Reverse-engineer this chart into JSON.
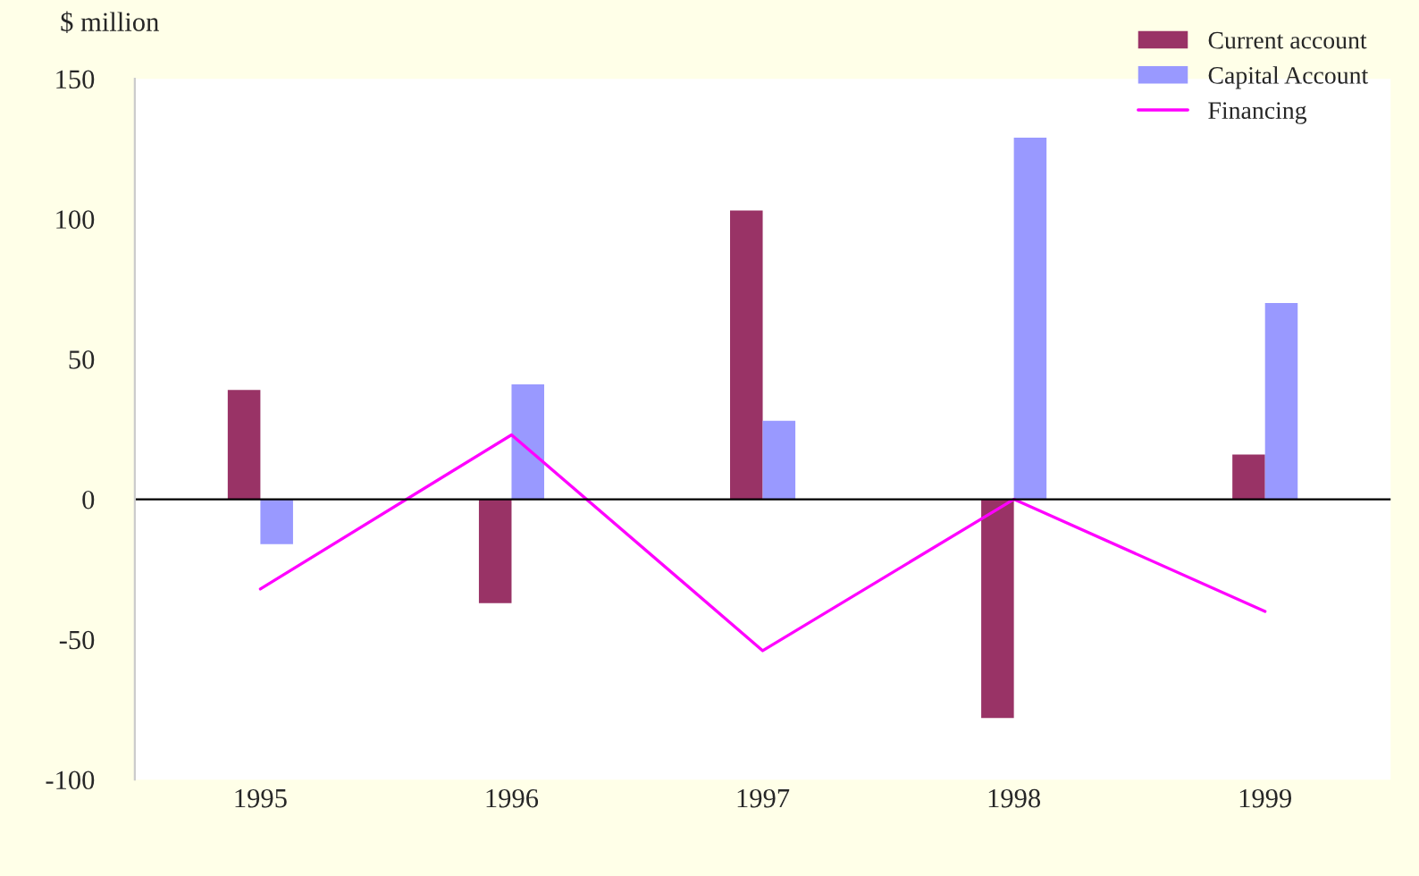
{
  "chart_data": {
    "type": "bar",
    "ylabel": "$ million",
    "categories": [
      "1995",
      "1996",
      "1997",
      "1998",
      "1999"
    ],
    "series": [
      {
        "name": "Current account",
        "color": "#993366",
        "values": [
          39,
          -37,
          103,
          -78,
          16
        ]
      },
      {
        "name": "Capital Account",
        "color": "#9999ff",
        "values": [
          -16,
          41,
          28,
          129,
          70
        ]
      },
      {
        "name": "Financing",
        "type": "line",
        "color": "#ff00ff",
        "values": [
          -32,
          23,
          -54,
          0,
          -40
        ]
      }
    ],
    "ylim": [
      -100,
      150
    ],
    "yticks": [
      -100,
      -50,
      0,
      50,
      100,
      150
    ],
    "ref_lines": [
      {
        "axis": "y",
        "value": 0,
        "color": "#000000"
      }
    ],
    "grid": false,
    "legend": "top right"
  }
}
